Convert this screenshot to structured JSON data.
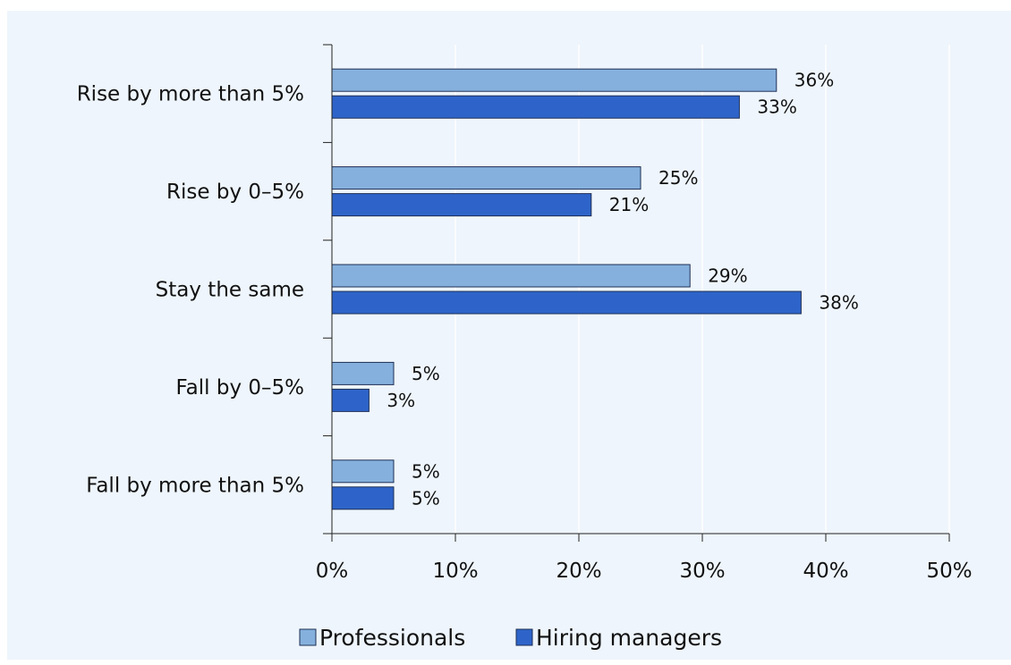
{
  "chart_data": {
    "type": "bar",
    "orientation": "horizontal",
    "categories": [
      "Rise by  more than 5%",
      "Rise by 0–5%",
      "Stay the same",
      "Fall by 0–5%",
      "Fall by more than 5%"
    ],
    "series": [
      {
        "name": "Professionals",
        "values": [
          36,
          25,
          29,
          5,
          5
        ],
        "labels": [
          "36%",
          "25%",
          "29%",
          "5%",
          "5%"
        ],
        "color": "#85b0dd"
      },
      {
        "name": "Hiring managers",
        "values": [
          33,
          21,
          38,
          3,
          5
        ],
        "labels": [
          "33%",
          "21%",
          "38%",
          "3%",
          "5%"
        ],
        "color": "#2e64c9"
      }
    ],
    "xlim": [
      0,
      50
    ],
    "xticks": [
      0,
      10,
      20,
      30,
      40,
      50
    ],
    "xtick_labels": [
      "0%",
      "10%",
      "20%",
      "30%",
      "40%",
      "50%"
    ],
    "grid": true,
    "legend_position": "bottom",
    "background": "#eef5fc"
  }
}
